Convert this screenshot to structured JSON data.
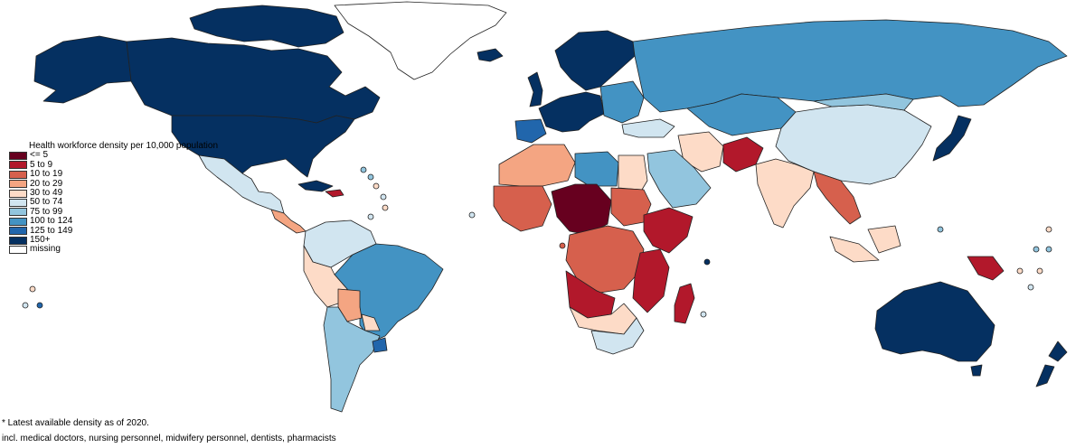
{
  "legend": {
    "title": "Health workforce density per 10,000 population",
    "items": [
      {
        "label": "<= 5",
        "color": "#67001f"
      },
      {
        "label": "5 to 9",
        "color": "#b2182b"
      },
      {
        "label": "10 to 19",
        "color": "#d6604d"
      },
      {
        "label": "20 to 29",
        "color": "#f4a582"
      },
      {
        "label": "30 to 49",
        "color": "#fddbc7"
      },
      {
        "label": "50 to 74",
        "color": "#d1e5f0"
      },
      {
        "label": "75 to 99",
        "color": "#92c5de"
      },
      {
        "label": "100 to 124",
        "color": "#4393c3"
      },
      {
        "label": "125 to 149",
        "color": "#2166ac"
      },
      {
        "label": "150+",
        "color": "#053061"
      },
      {
        "label": "missing",
        "color": "#ffffff"
      }
    ]
  },
  "footnotes": [
    "* Latest available density as of 2020.",
    "incl. medical doctors, nursing personnel, midwifery personnel, dentists, pharmacists"
  ],
  "regions": [
    {
      "id": "greenland",
      "class": "missing"
    },
    {
      "id": "canada",
      "class": "150+"
    },
    {
      "id": "usa",
      "class": "150+"
    },
    {
      "id": "mexico",
      "class": "50 to 74"
    },
    {
      "id": "brazil",
      "class": "100 to 124"
    },
    {
      "id": "bolivia",
      "class": "20 to 29"
    },
    {
      "id": "argentina",
      "class": "75 to 99"
    },
    {
      "id": "uruguay",
      "class": "125 to 149"
    },
    {
      "id": "russia",
      "class": "100 to 124"
    },
    {
      "id": "china",
      "class": "50 to 74"
    },
    {
      "id": "india",
      "class": "30 to 49"
    },
    {
      "id": "afghanistan",
      "class": "5 to 9"
    },
    {
      "id": "saudi-arabia",
      "class": "75 to 99"
    },
    {
      "id": "libya",
      "class": "100 to 124"
    },
    {
      "id": "chad",
      "class": "<= 5"
    },
    {
      "id": "ethiopia",
      "class": "5 to 9"
    },
    {
      "id": "dr-congo",
      "class": "10 to 19"
    },
    {
      "id": "south-africa",
      "class": "50 to 74"
    },
    {
      "id": "madagascar",
      "class": "5 to 9"
    },
    {
      "id": "australia",
      "class": "150+"
    },
    {
      "id": "japan",
      "class": "150+"
    },
    {
      "id": "papua-new-guinea",
      "class": "5 to 9"
    },
    {
      "id": "indonesia",
      "class": "30 to 49"
    },
    {
      "id": "new-zealand",
      "class": "150+"
    }
  ]
}
